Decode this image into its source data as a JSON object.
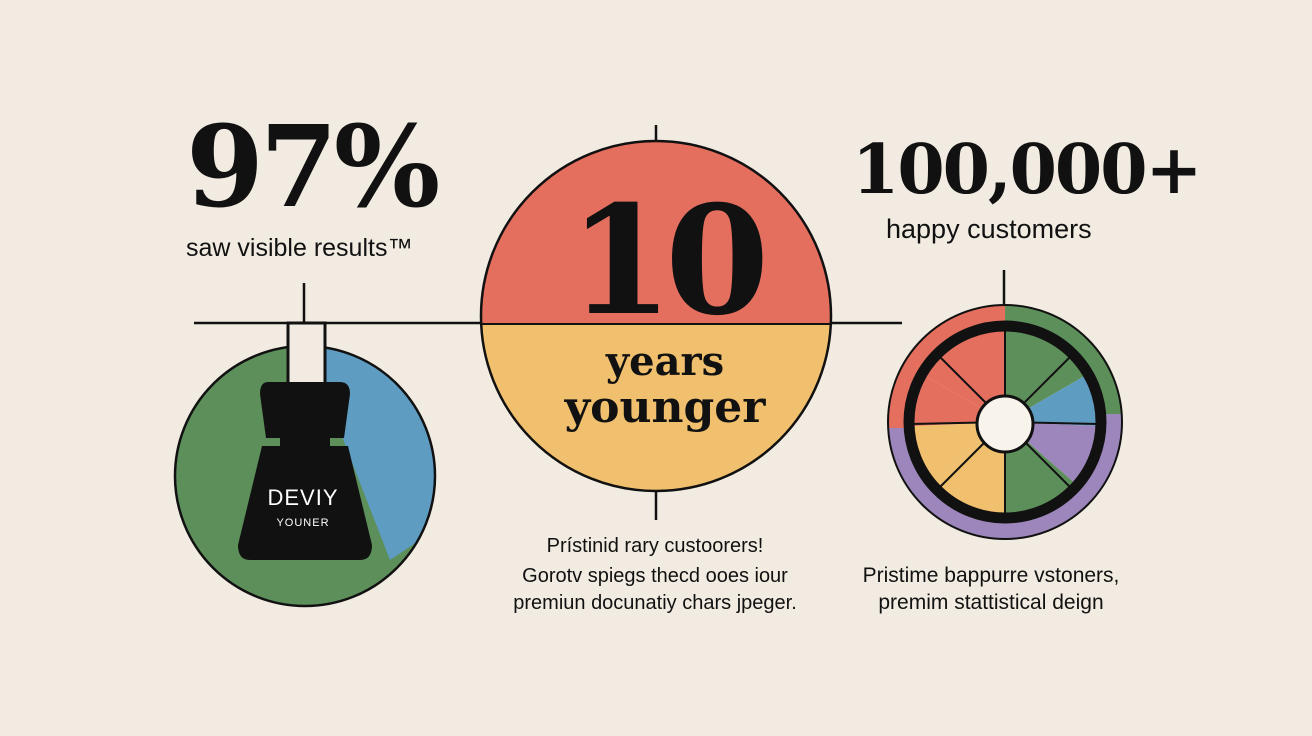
{
  "left_stat": {
    "value": "97%",
    "caption": "saw visible results™",
    "colors": [
      "#5d8f5b",
      "#5f9cc2"
    ]
  },
  "center_stat": {
    "value": "10",
    "label_line1": "years",
    "label_line2": "younger",
    "colors": [
      "#e46f5e",
      "#f1c06e"
    ],
    "text_lines": [
      "Prístinid rary custoorers!",
      "Gorotv spiegs thecd ooes iour",
      "premiun docunatiy chars jpeger."
    ]
  },
  "right_stat": {
    "value": "100,000+",
    "caption": "happy customers",
    "wheel_colors": [
      "#e46f5e",
      "#5d8f5b",
      "#5f9cc2",
      "#9c86bb",
      "#f1c06e"
    ],
    "text_lines": [
      "Pristime bappurre vstoners,",
      "premim stattistical deign"
    ]
  },
  "product": {
    "icon": "serum-bottle-icon",
    "brand": "DEVIY",
    "subtitle": "YOUNER"
  }
}
